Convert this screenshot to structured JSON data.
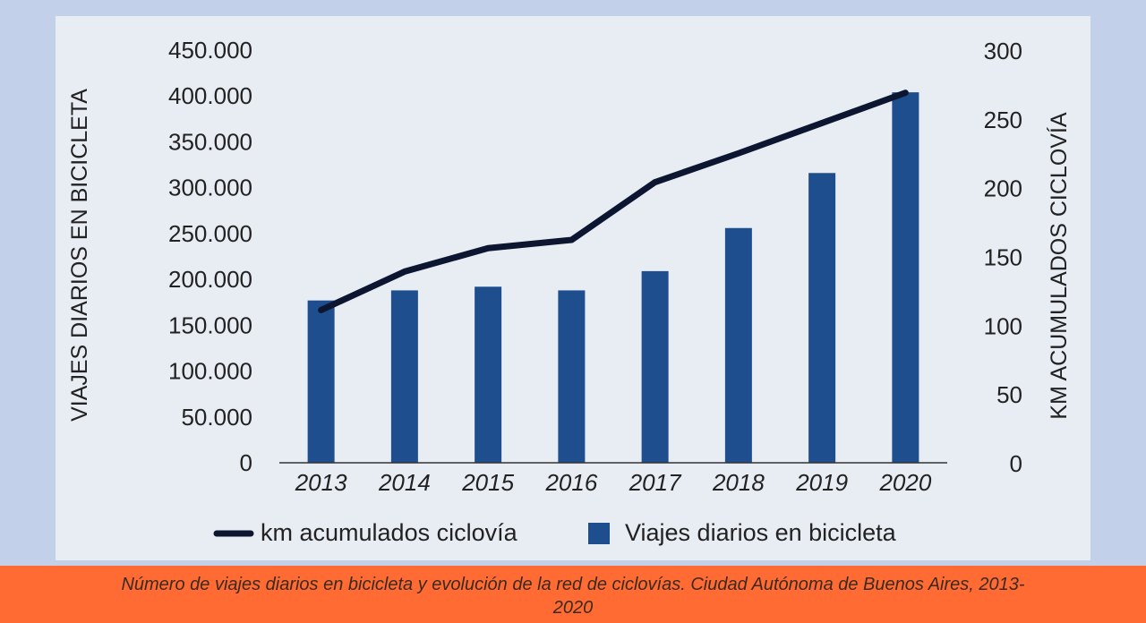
{
  "chart_data": {
    "type": "bar+line",
    "categories": [
      "2013",
      "2014",
      "2015",
      "2016",
      "2017",
      "2018",
      "2019",
      "2020"
    ],
    "series": [
      {
        "name": "Viajes diarios en bicicleta",
        "type": "bar",
        "axis": "left",
        "color": "#1f4e8f",
        "values": [
          177000,
          188000,
          192000,
          188000,
          209000,
          256000,
          316000,
          404000
        ]
      },
      {
        "name": "km acumulados ciclovía",
        "type": "line",
        "axis": "right",
        "color": "#0d1630",
        "values": [
          111,
          139,
          156,
          162,
          204,
          225,
          247,
          269
        ]
      }
    ],
    "ylabel": "VIAJES DIARIOS EN BICICLETA",
    "y2label": "KM ACUMULADOS CICLOVÍA",
    "ylim": [
      0,
      450000
    ],
    "y2lim": [
      0,
      300
    ],
    "yticks": [
      "0",
      "50.000",
      "100.000",
      "150.000",
      "200.000",
      "250.000",
      "300.000",
      "350.000",
      "400.000",
      "450.000"
    ],
    "y2ticks": [
      "0",
      "50",
      "100",
      "150",
      "200",
      "250",
      "300"
    ],
    "grid": false,
    "legend": "bottom"
  },
  "caption": "Número de viajes diarios en bicicleta y evolución de la red de ciclovías. Ciudad Autónoma de Buenos Aires, 2013-2020"
}
